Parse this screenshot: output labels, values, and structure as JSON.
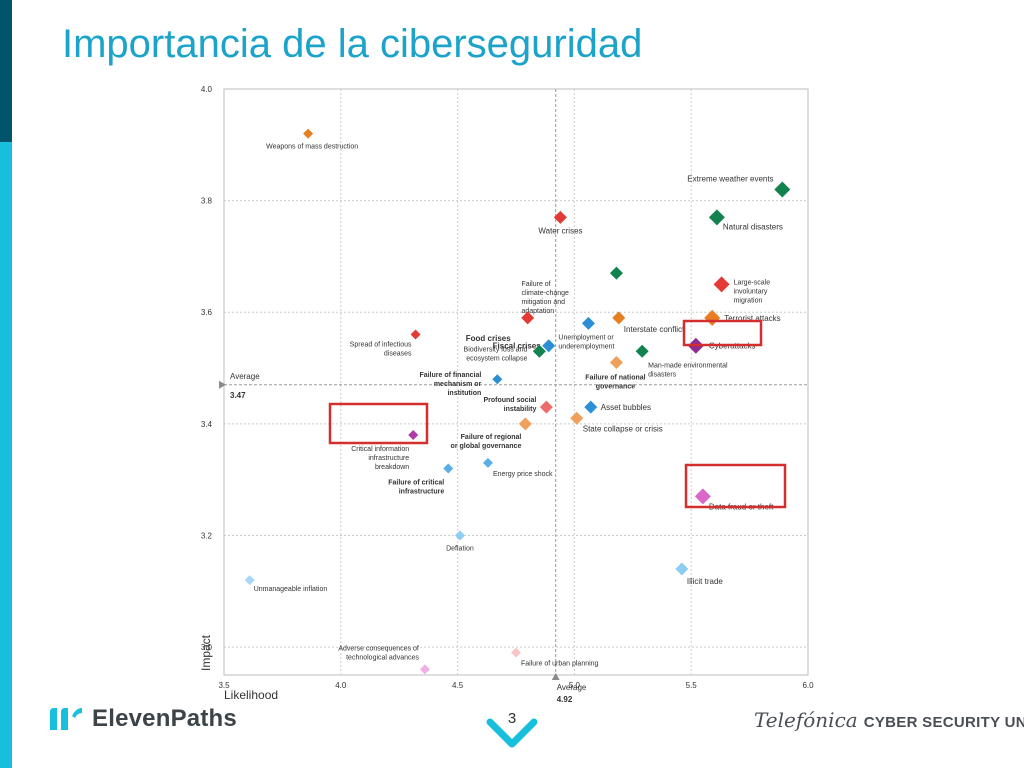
{
  "slide": {
    "title": "Importancia de la ciberseguridad",
    "page_number": "3",
    "logo_left": "ElevenPaths",
    "logo_right_brand": "Telefónica",
    "logo_right_unit": "CYBER SECURITY UNIT"
  },
  "colors": {
    "title": "#1ba3c9",
    "economic": "#2b8fd6",
    "environmental": "#12824f",
    "geopolitical": "#e67e22",
    "societal": "#e53935",
    "technological": "#b03aa8",
    "highlight_box": "#d32f2f"
  },
  "chart_data": {
    "type": "scatter",
    "xlabel": "Likelihood",
    "ylabel": "Impact",
    "xlim": [
      3.5,
      6.0
    ],
    "ylim": [
      2.95,
      4.0
    ],
    "x_ticks": [
      "3.5",
      "4.0",
      "4.5",
      "5.0",
      "5.5",
      "6.0"
    ],
    "y_ticks": [
      "3.0",
      "3.2",
      "3.4",
      "3.6",
      "3.8",
      "4.0"
    ],
    "grid": true,
    "average_x": {
      "label": "Average",
      "value": "4.92"
    },
    "average_y": {
      "label": "Average",
      "value": "3.47"
    },
    "points": [
      {
        "label": "Weapons of mass destruction",
        "x": 3.86,
        "y": 3.92,
        "color": "#e67e22",
        "size": "s"
      },
      {
        "label": "Water crises",
        "x": 4.94,
        "y": 3.77,
        "color": "#e53935",
        "size": "m"
      },
      {
        "label": "Extreme weather events",
        "x": 5.89,
        "y": 3.82,
        "color": "#12824f",
        "size": "l"
      },
      {
        "label": "Natural disasters",
        "x": 5.61,
        "y": 3.77,
        "color": "#12824f",
        "size": "l"
      },
      {
        "label": "Failure of climate-change mitigation and adaptation",
        "x": 5.18,
        "y": 3.67,
        "color": "#12824f",
        "size": "m"
      },
      {
        "label": "Large-scale involuntary migration",
        "x": 5.63,
        "y": 3.65,
        "color": "#e53935",
        "size": "l"
      },
      {
        "label": "Food crises",
        "x": 4.8,
        "y": 3.59,
        "color": "#e53935",
        "size": "m"
      },
      {
        "label": "Terrorist attacks",
        "x": 5.59,
        "y": 3.59,
        "color": "#e67e22",
        "size": "l"
      },
      {
        "label": "Interstate conflict",
        "x": 5.19,
        "y": 3.59,
        "color": "#e67e22",
        "size": "m"
      },
      {
        "label": "Unemployment or underemployment",
        "x": 5.06,
        "y": 3.58,
        "color": "#2b8fd6",
        "size": "m"
      },
      {
        "label": "Spread of infectious diseases",
        "x": 4.32,
        "y": 3.56,
        "color": "#e53935",
        "size": "s"
      },
      {
        "label": "Fiscal crises",
        "x": 4.89,
        "y": 3.54,
        "color": "#2b8fd6",
        "size": "m"
      },
      {
        "label": "Cyberattacks",
        "x": 5.52,
        "y": 3.54,
        "color": "#8e2c91",
        "size": "l"
      },
      {
        "label": "Biodiversity loss and ecosystem collapse",
        "x": 4.85,
        "y": 3.53,
        "color": "#12824f",
        "size": "m"
      },
      {
        "label": "Man-made environmental disasters",
        "x": 5.29,
        "y": 3.53,
        "color": "#12824f",
        "size": "m"
      },
      {
        "label": "Failure of national governance",
        "x": 5.18,
        "y": 3.51,
        "color": "#f0a05a",
        "size": "m"
      },
      {
        "label": "Failure of financial mechanism or institution",
        "x": 4.67,
        "y": 3.48,
        "color": "#2b8fd6",
        "size": "s"
      },
      {
        "label": "Profound social instability",
        "x": 4.88,
        "y": 3.43,
        "color": "#ec6b6b",
        "size": "m"
      },
      {
        "label": "Asset bubbles",
        "x": 5.07,
        "y": 3.43,
        "color": "#2b8fd6",
        "size": "m"
      },
      {
        "label": "State collapse or crisis",
        "x": 5.01,
        "y": 3.41,
        "color": "#f0a05a",
        "size": "m"
      },
      {
        "label": "Failure of regional or global governance",
        "x": 4.79,
        "y": 3.4,
        "color": "#f0a05a",
        "size": "m"
      },
      {
        "label": "Critical information infrastructure breakdown",
        "x": 4.31,
        "y": 3.38,
        "color": "#b03aa8",
        "size": "s"
      },
      {
        "label": "Energy price shock",
        "x": 4.63,
        "y": 3.33,
        "color": "#5aaee8",
        "size": "s"
      },
      {
        "label": "Failure of critical infrastructure",
        "x": 4.46,
        "y": 3.32,
        "color": "#5aaee8",
        "size": "s"
      },
      {
        "label": "Data fraud or theft",
        "x": 5.55,
        "y": 3.27,
        "color": "#d968c9",
        "size": "l"
      },
      {
        "label": "Deflation",
        "x": 4.51,
        "y": 3.2,
        "color": "#8ccdf2",
        "size": "s"
      },
      {
        "label": "Illicit trade",
        "x": 5.46,
        "y": 3.14,
        "color": "#8ccdf2",
        "size": "m"
      },
      {
        "label": "Unmanageable inflation",
        "x": 3.61,
        "y": 3.12,
        "color": "#a8d8f5",
        "size": "s"
      },
      {
        "label": "Failure of urban planning",
        "x": 4.75,
        "y": 2.99,
        "color": "#f6c6c6",
        "size": "s"
      },
      {
        "label": "Adverse consequences of technological advances",
        "x": 4.36,
        "y": 2.96,
        "color": "#f0b0e6",
        "size": "s"
      }
    ],
    "highlighted": [
      "Cyberattacks",
      "Critical information infrastructure breakdown",
      "Data fraud or theft"
    ]
  }
}
